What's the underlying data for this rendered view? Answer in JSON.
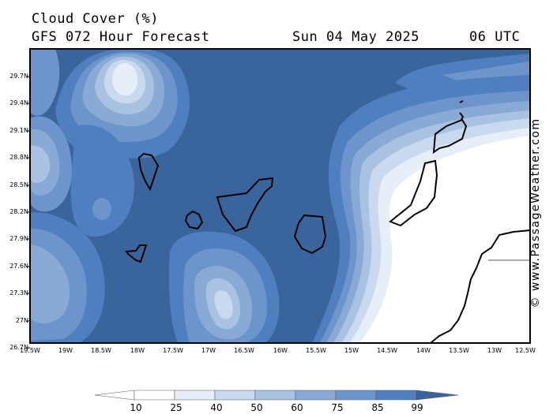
{
  "header": {
    "title": "Cloud Cover (%)",
    "subtitle": "GFS 072 Hour Forecast",
    "date": "Sun 04 May 2025",
    "time": "06 UTC"
  },
  "map": {
    "lat_labels": [
      "29.7N",
      "29.4N",
      "29.1N",
      "28.8N",
      "28.5N",
      "28.2N",
      "27.9N",
      "27.6N",
      "27.3N",
      "27N",
      "26.7N"
    ],
    "lon_labels": [
      "19.5W",
      "19W",
      "18.5W",
      "18W",
      "17.5W",
      "17W",
      "16.5W",
      "16W",
      "15.5W",
      "15W",
      "14.5W",
      "14W",
      "13.5W",
      "13W",
      "12.5W"
    ],
    "field": "cloud cover percent",
    "palette": [
      "#ffffff",
      "#e6eef8",
      "#c9daee",
      "#a9c2e2",
      "#8aaad6",
      "#6e95cb",
      "#4f7fbf",
      "#3a659c"
    ]
  },
  "legend": {
    "labels": [
      "10",
      "25",
      "40",
      "50",
      "60",
      "75",
      "85",
      "99"
    ]
  },
  "credit": "© www.PassageWeather.com"
}
